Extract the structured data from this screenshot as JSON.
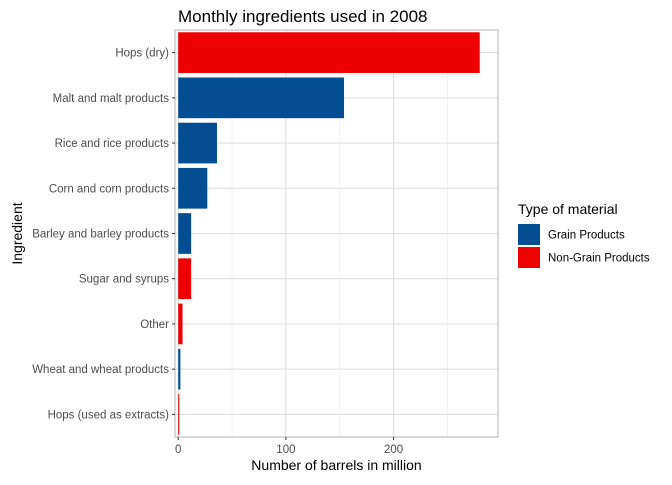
{
  "chart_data": {
    "type": "bar",
    "orientation": "horizontal",
    "title": "Monthly ingredients used in 2008",
    "xlabel": "Number of barrels in million",
    "ylabel": "Ingredient",
    "xlim": [
      -3,
      297
    ],
    "xticks": [
      0,
      100,
      200
    ],
    "grid": true,
    "legend": {
      "title": "Type of material",
      "position": "right",
      "entries": [
        {
          "name": "Grain Products",
          "color": "#034e93"
        },
        {
          "name": "Non-Grain Products",
          "color": "#ee0000"
        }
      ]
    },
    "categories": [
      "Hops (dry)",
      "Malt and malt products",
      "Rice and rice products",
      "Corn and corn products",
      "Barley and barley products",
      "Sugar and syrups",
      "Other",
      "Wheat and wheat products",
      "Hops (used as extracts)"
    ],
    "values": [
      280,
      154,
      36,
      27,
      12,
      12,
      4,
      2,
      1
    ],
    "groups": [
      "Non-Grain Products",
      "Grain Products",
      "Grain Products",
      "Grain Products",
      "Grain Products",
      "Non-Grain Products",
      "Non-Grain Products",
      "Grain Products",
      "Non-Grain Products"
    ]
  }
}
